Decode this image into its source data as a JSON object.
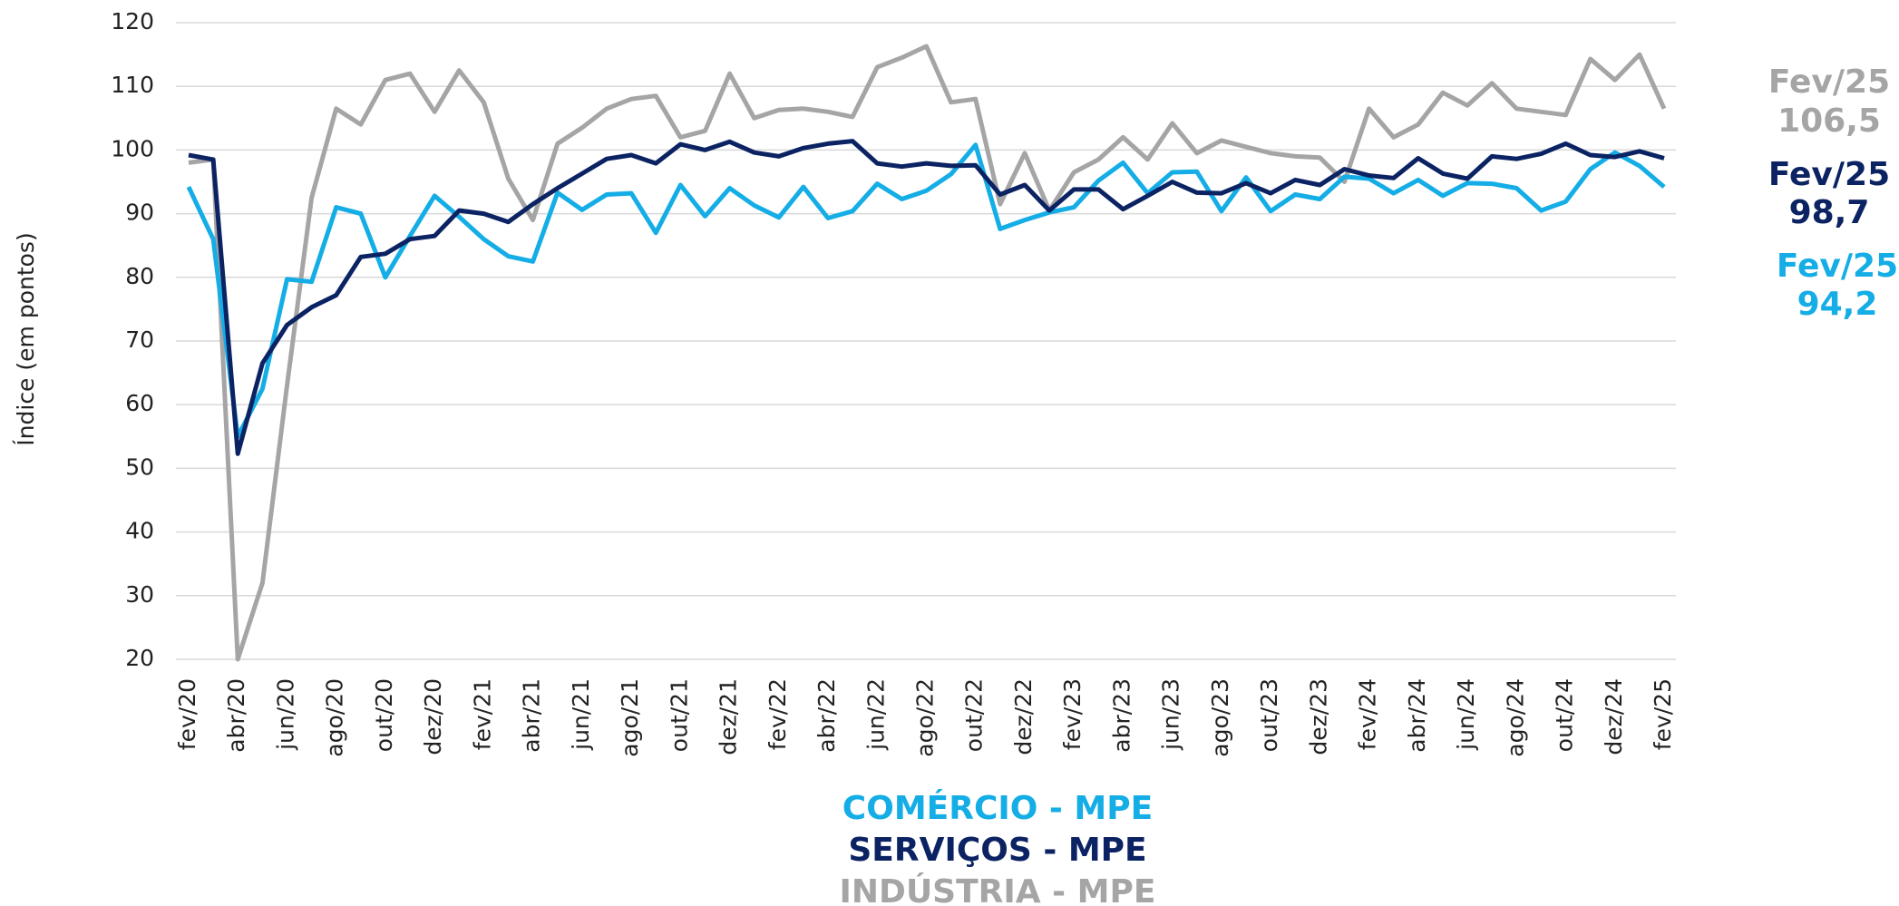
{
  "chart_data": {
    "type": "line",
    "y_label": "Índice (em pontos)",
    "categories": [
      "fev/20",
      null,
      "abr/20",
      null,
      "jun/20",
      null,
      "ago/20",
      null,
      "out/20",
      null,
      "dez/20",
      null,
      "fev/21",
      null,
      "abr/21",
      null,
      "jun/21",
      null,
      "ago/21",
      null,
      "out/21",
      null,
      "dez/21",
      null,
      "fev/22",
      null,
      "abr/22",
      null,
      "jun/22",
      null,
      "ago/22",
      null,
      "out/22",
      null,
      "dez/22",
      null,
      "fev/23",
      null,
      "abr/23",
      null,
      "jun/23",
      null,
      "ago/23",
      null,
      "out/23",
      null,
      "dez/23",
      null,
      "fev/24",
      null,
      "abr/24",
      null,
      "jun/24",
      null,
      "ago/24",
      null,
      "out/24",
      null,
      "dez/24",
      null,
      "fev/25"
    ],
    "series": [
      {
        "name": "COMÉRCIO - MPE",
        "color": "#14ade6",
        "end_period": "Fev/25",
        "end_label": "94,2",
        "values": [
          94.2,
          86,
          55,
          62.5,
          79.7,
          79.3,
          91,
          90,
          80,
          86.5,
          92.8,
          89.5,
          86,
          83.3,
          82.5,
          93.3,
          90.6,
          93,
          93.2,
          87,
          94.5,
          89.6,
          94,
          91.3,
          89.4,
          94.2,
          89.3,
          90.4,
          94.7,
          92.3,
          93.6,
          96.2,
          100.8,
          87.6,
          89,
          90.2,
          91,
          95.2,
          98,
          93.2,
          96.5,
          96.6,
          90.4,
          95.7,
          90.4,
          93,
          92.3,
          95.8,
          95.5,
          93.2,
          95.3,
          92.8,
          94.8,
          94.7,
          94,
          90.5,
          91.9,
          97,
          99.6,
          97.5,
          94.2
        ]
      },
      {
        "name": "SERVIÇOS - MPE",
        "color": "#0c2363",
        "end_period": "Fev/25",
        "end_label": "98,7",
        "values": [
          99.2,
          98.5,
          52.3,
          66.5,
          72.5,
          75.3,
          77.2,
          83.2,
          83.7,
          86,
          86.5,
          90.5,
          90,
          88.7,
          91.5,
          94,
          96.3,
          98.6,
          99.2,
          97.9,
          100.9,
          100,
          101.3,
          99.6,
          99,
          100.3,
          101,
          101.4,
          97.9,
          97.4,
          97.9,
          97.5,
          97.6,
          93,
          94.5,
          90.5,
          93.8,
          93.8,
          90.7,
          92.8,
          95,
          93.3,
          93.2,
          94.8,
          93.2,
          95.3,
          94.5,
          97,
          96,
          95.6,
          98.7,
          96.3,
          95.5,
          99,
          98.6,
          99.4,
          101,
          99.2,
          98.9,
          99.8,
          98.7
        ]
      },
      {
        "name": "INDÚSTRIA - MPE",
        "color": "#a5a5a5",
        "end_period": "Fev/25",
        "end_label": "106,5",
        "values": [
          98,
          98.5,
          20,
          32,
          63,
          92.5,
          106.5,
          104,
          111,
          112,
          106,
          112.5,
          107.5,
          95.5,
          89,
          101,
          103.5,
          106.5,
          108,
          108.5,
          102,
          103,
          112,
          105,
          106.3,
          106.5,
          106,
          105.2,
          113,
          114.5,
          116.3,
          107.5,
          108,
          91.5,
          99.5,
          90.5,
          96.5,
          98.5,
          102,
          98.5,
          104.2,
          99.5,
          101.5,
          100.5,
          99.5,
          99,
          98.8,
          95,
          106.5,
          102,
          104,
          109,
          107,
          110.5,
          106.5,
          106,
          105.5,
          114.3,
          111,
          115,
          106.5
        ]
      }
    ],
    "ylim": [
      20,
      120
    ],
    "yticks": [
      20,
      30,
      40,
      50,
      60,
      70,
      80,
      90,
      100,
      110,
      120
    ],
    "grid": true
  }
}
